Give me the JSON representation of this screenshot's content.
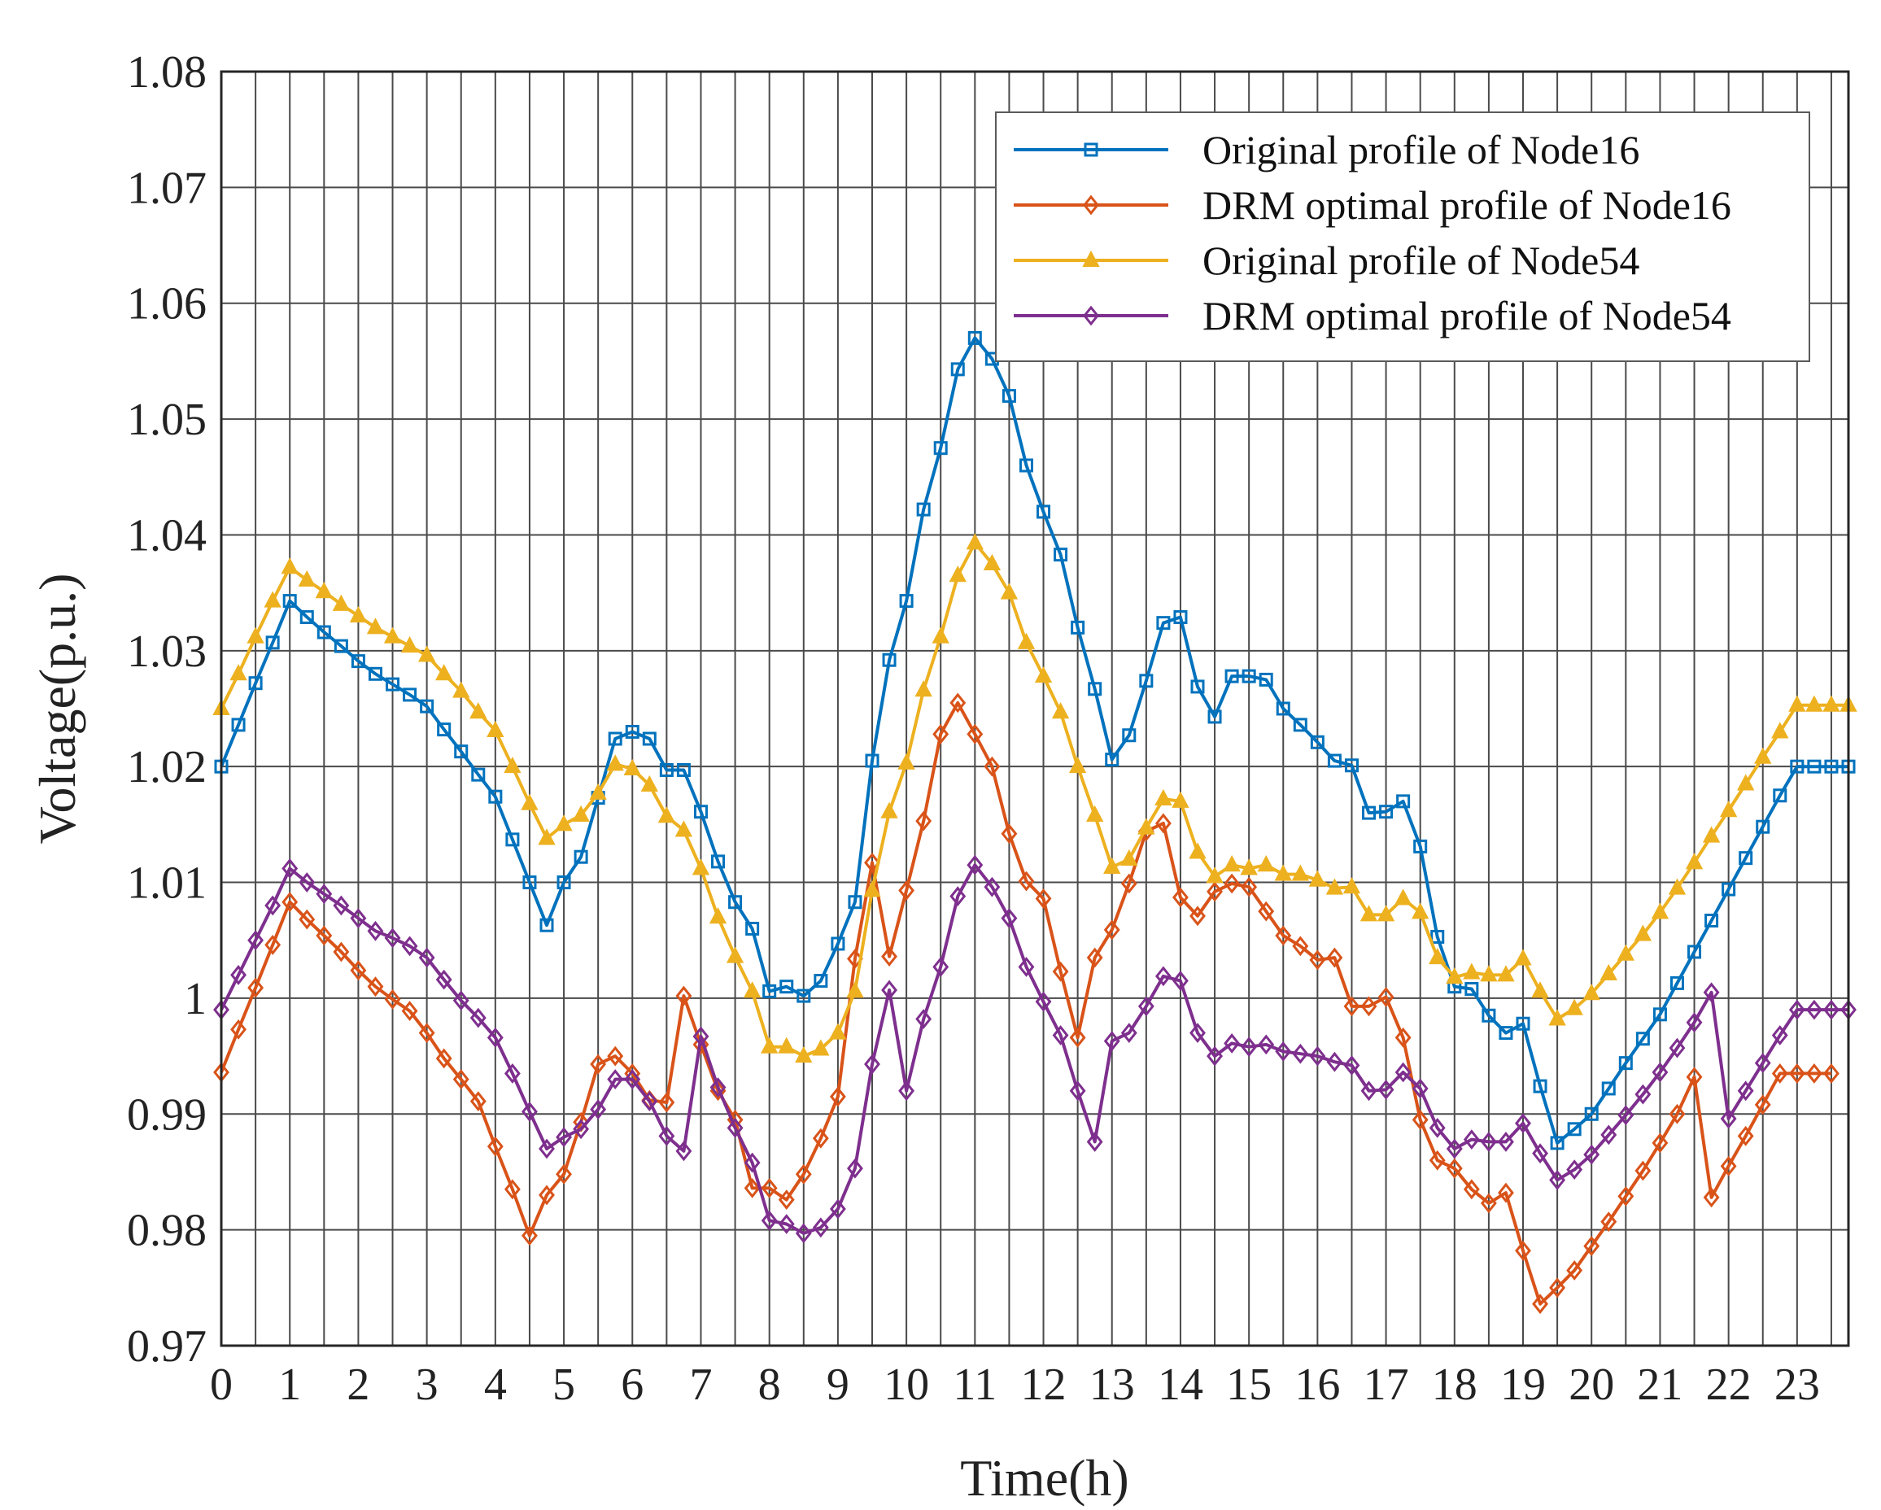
{
  "chart_data": {
    "type": "line",
    "xlabel": "Time(h)",
    "ylabel": "Voltage(p.u.)",
    "xlim": [
      0,
      23.75
    ],
    "ylim": [
      0.97,
      1.08
    ],
    "grid": true,
    "legend_position": "top-right",
    "x_ticks": [
      "0",
      "1",
      "2",
      "3",
      "4",
      "5",
      "6",
      "7",
      "8",
      "9",
      "10",
      "11",
      "12",
      "13",
      "14",
      "15",
      "16",
      "17",
      "18",
      "19",
      "20",
      "21",
      "22",
      "23"
    ],
    "y_ticks": [
      "0.97",
      "0.98",
      "0.99",
      "1",
      "1.01",
      "1.02",
      "1.03",
      "1.04",
      "1.05",
      "1.06",
      "1.07",
      "1.08"
    ],
    "x_step": 0.25,
    "series": [
      {
        "name": "Original profile of Node16",
        "color": "#0072BD",
        "marker": "square",
        "values": [
          1.02,
          1.0236,
          1.0272,
          1.0307,
          1.0343,
          1.0329,
          1.0316,
          1.0304,
          1.0291,
          1.028,
          1.0271,
          1.0262,
          1.0252,
          1.0232,
          1.0213,
          1.0193,
          1.0174,
          1.0137,
          1.01,
          1.0063,
          1.01,
          1.0122,
          1.0173,
          1.0224,
          1.023,
          1.0224,
          1.0197,
          1.0197,
          1.0161,
          1.0118,
          1.0083,
          1.006,
          1.0006,
          1.001,
          1.0002,
          1.0015,
          1.0047,
          1.0083,
          1.0205,
          1.0292,
          1.0343,
          1.0422,
          1.0475,
          1.0543,
          1.057,
          1.0552,
          1.052,
          1.046,
          1.042,
          1.0383,
          1.032,
          1.0267,
          1.0206,
          1.0227,
          1.0274,
          1.0324,
          1.0329,
          1.0269,
          1.0243,
          1.0278,
          1.0278,
          1.0275,
          1.025,
          1.0236,
          1.0221,
          1.0205,
          1.0201,
          1.016,
          1.0161,
          1.017,
          1.0131,
          1.0053,
          1.001,
          1.0008,
          0.9985,
          0.997,
          0.9978,
          0.9924,
          0.9875,
          0.9887,
          0.99,
          0.9922,
          0.9944,
          0.9965,
          0.9986,
          1.0013,
          1.004,
          1.0067,
          1.0094,
          1.0121,
          1.0148,
          1.0175,
          1.02,
          1.02,
          1.02,
          1.02
        ]
      },
      {
        "name": "DRM optimal profile of Node16",
        "color": "#D95319",
        "marker": "diamond",
        "values": [
          0.9936,
          0.9973,
          1.0009,
          1.0046,
          1.0083,
          1.0068,
          1.0054,
          1.004,
          1.0024,
          1.001,
          0.9999,
          0.9989,
          0.997,
          0.9948,
          0.993,
          0.9911,
          0.9872,
          0.9835,
          0.9795,
          0.983,
          0.9848,
          0.9893,
          0.9943,
          0.995,
          0.9935,
          0.9912,
          0.991,
          1.0002,
          0.996,
          0.992,
          0.9895,
          0.9836,
          0.9836,
          0.9826,
          0.9848,
          0.9879,
          0.9915,
          1.0034,
          1.0117,
          1.0036,
          1.0093,
          1.0153,
          1.0228,
          1.0255,
          1.0228,
          1.02,
          1.0142,
          1.0101,
          1.0086,
          1.0023,
          0.9966,
          1.0035,
          1.0059,
          1.0099,
          1.0144,
          1.0151,
          1.0087,
          1.0071,
          1.0092,
          1.0099,
          1.0096,
          1.0075,
          1.0054,
          1.0045,
          1.0033,
          1.0035,
          0.9993,
          0.9993,
          1.0001,
          0.9966,
          0.9895,
          0.986,
          0.9853,
          0.9835,
          0.9823,
          0.9832,
          0.9782,
          0.9736,
          0.975,
          0.9765,
          0.9786,
          0.9807,
          0.9829,
          0.9851,
          0.9875,
          0.99,
          0.9932,
          0.9828,
          0.9855,
          0.9881,
          0.9908,
          0.9935,
          0.9935,
          0.9935,
          0.9935
        ]
      },
      {
        "name": "Original profile of Node54",
        "color": "#EDB120",
        "marker": "triangle",
        "values": [
          1.025,
          1.028,
          1.0312,
          1.0343,
          1.0372,
          1.0361,
          1.0351,
          1.034,
          1.033,
          1.032,
          1.0312,
          1.0304,
          1.0296,
          1.028,
          1.0265,
          1.0247,
          1.0231,
          1.02,
          1.0168,
          1.0138,
          1.015,
          1.0158,
          1.0177,
          1.0202,
          1.0198,
          1.0184,
          1.0157,
          1.0145,
          1.0112,
          1.007,
          1.0036,
          1.0006,
          0.9958,
          0.9958,
          0.995,
          0.9956,
          0.997,
          1.0006,
          1.0093,
          1.0161,
          1.0203,
          1.0266,
          1.0312,
          1.0365,
          1.0393,
          1.0375,
          1.035,
          1.0307,
          1.0278,
          1.0247,
          1.02,
          1.0158,
          1.0113,
          1.012,
          1.0147,
          1.0172,
          1.017,
          1.0126,
          1.0105,
          1.0115,
          1.0112,
          1.0115,
          1.0107,
          1.0107,
          1.0102,
          1.0095,
          1.0096,
          1.0072,
          1.0072,
          1.0086,
          1.0074,
          1.0035,
          1.0018,
          1.0022,
          1.002,
          1.002,
          1.0034,
          1.0006,
          0.9982,
          0.9991,
          1.0004,
          1.0021,
          1.0038,
          1.0055,
          1.0074,
          1.0095,
          1.0117,
          1.014,
          1.0162,
          1.0185,
          1.0208,
          1.023,
          1.0253,
          1.0253,
          1.0253,
          1.0253
        ]
      },
      {
        "name": "DRM optimal profile of Node54",
        "color": "#7E2F8E",
        "marker": "diamond",
        "values": [
          0.999,
          1.002,
          1.005,
          1.008,
          1.0112,
          1.01,
          1.009,
          1.008,
          1.0069,
          1.0058,
          1.0052,
          1.0045,
          1.0035,
          1.0016,
          0.9998,
          0.9983,
          0.9966,
          0.9935,
          0.9902,
          0.987,
          0.988,
          0.9887,
          0.9904,
          0.993,
          0.993,
          0.9911,
          0.9881,
          0.9868,
          0.9967,
          0.9923,
          0.9888,
          0.9858,
          0.9808,
          0.9805,
          0.9797,
          0.9802,
          0.9818,
          0.9853,
          0.9943,
          1.0007,
          0.992,
          0.9982,
          1.0027,
          1.0088,
          1.0115,
          1.0096,
          1.0069,
          1.0027,
          0.9997,
          0.9968,
          0.992,
          0.9876,
          0.9963,
          0.997,
          0.9993,
          1.0019,
          1.0015,
          0.997,
          0.995,
          0.9961,
          0.9958,
          0.996,
          0.9954,
          0.9952,
          0.995,
          0.9945,
          0.9942,
          0.992,
          0.9921,
          0.9936,
          0.9922,
          0.9888,
          0.987,
          0.9878,
          0.9876,
          0.9876,
          0.9892,
          0.9866,
          0.9843,
          0.9852,
          0.9865,
          0.9882,
          0.9899,
          0.9917,
          0.9936,
          0.9957,
          0.9979,
          1.0005,
          0.9896,
          0.992,
          0.9944,
          0.9968,
          0.999,
          0.999,
          0.999,
          0.999
        ]
      }
    ]
  }
}
